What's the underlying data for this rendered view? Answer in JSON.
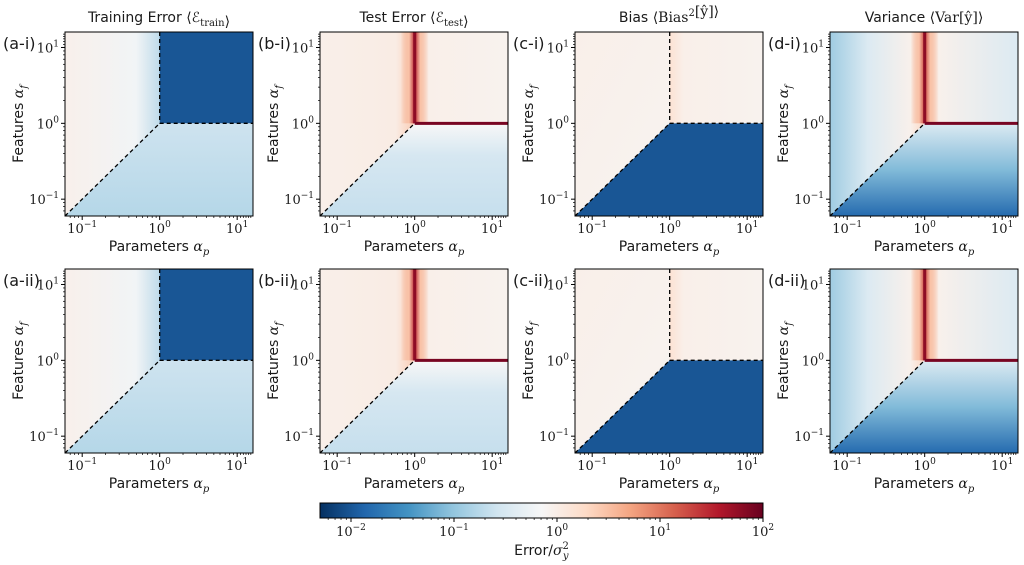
{
  "colors": {
    "dark_blue": "#053061",
    "white": "#f7f7f7",
    "dark_red": "#67001f",
    "frame": "#000000"
  },
  "chart_data": {
    "type": "heatmap",
    "layout": "2x4 grid of heatmaps with shared colorbar",
    "scale": "log",
    "xaxis": {
      "label_prefix": "Parameters ",
      "label_symbol": "α",
      "label_sub": "p",
      "ticks": [
        {
          "base": "10",
          "exp": "−1"
        },
        {
          "base": "10",
          "exp": "0"
        },
        {
          "base": "10",
          "exp": "1"
        }
      ],
      "range": [
        0.06,
        16
      ]
    },
    "yaxis": {
      "label_prefix": "Features ",
      "label_symbol": "α",
      "label_sub": "f",
      "ticks": [
        {
          "base": "10",
          "exp": "−1"
        },
        {
          "base": "10",
          "exp": "0"
        },
        {
          "base": "10",
          "exp": "1"
        }
      ],
      "range": [
        0.06,
        16
      ]
    },
    "columns": [
      {
        "key": "train",
        "title_text": "Training Error ",
        "title_math": "⟨ℰ",
        "title_sub": "train",
        "title_end": "⟩"
      },
      {
        "key": "test",
        "title_text": "Test Error ",
        "title_math": "⟨ℰ",
        "title_sub": "test",
        "title_end": "⟩"
      },
      {
        "key": "bias",
        "title_text": "Bias ",
        "title_math": "⟨Bias",
        "title_sup": "2",
        "title_mid": "[ŷ]",
        "title_end": "⟩"
      },
      {
        "key": "variance",
        "title_text": "Variance ",
        "title_math": "⟨Var",
        "title_mid": "[ŷ]",
        "title_end": "⟩"
      }
    ],
    "panels": [
      {
        "label": "(a-i)",
        "row": 0,
        "col": 0,
        "quantity": "train"
      },
      {
        "label": "(b-i)",
        "row": 0,
        "col": 1,
        "quantity": "test"
      },
      {
        "label": "(c-i)",
        "row": 0,
        "col": 2,
        "quantity": "bias"
      },
      {
        "label": "(d-i)",
        "row": 0,
        "col": 3,
        "quantity": "variance"
      },
      {
        "label": "(a-ii)",
        "row": 1,
        "col": 0,
        "quantity": "train"
      },
      {
        "label": "(b-ii)",
        "row": 1,
        "col": 1,
        "quantity": "test"
      },
      {
        "label": "(c-ii)",
        "row": 1,
        "col": 2,
        "quantity": "bias"
      },
      {
        "label": "(d-ii)",
        "row": 1,
        "col": 3,
        "quantity": "variance"
      }
    ],
    "boundaries": {
      "dashed_diagonal": "alpha_f = alpha_p for alpha_p < 1",
      "vertical_line": "alpha_p = 1 for alpha_f > 1",
      "horizontal_line": "alpha_f = 1 for alpha_p > 1"
    },
    "region_values": {
      "train": {
        "upper_left": 0.7,
        "upper_right": 0.01,
        "lower": 0.18
      },
      "test": {
        "upper_left": 0.9,
        "upper_right": 0.85,
        "lower": 0.2,
        "peak": 30
      },
      "bias": {
        "upper_left": 0.9,
        "upper_right": 0.85,
        "lower": 0.01
      },
      "variance": {
        "upper_left": 0.3,
        "upper_right": 0.6,
        "lower": 0.03,
        "peak": 20
      }
    },
    "colorbar": {
      "colormap": "RdBu_r",
      "range": [
        0.005,
        100
      ],
      "ticks": [
        {
          "base": "10",
          "exp": "−2"
        },
        {
          "base": "10",
          "exp": "−1"
        },
        {
          "base": "10",
          "exp": "0"
        },
        {
          "base": "10",
          "exp": "1"
        },
        {
          "base": "10",
          "exp": "2"
        }
      ],
      "label_prefix": "Error/",
      "label_symbol": "σ",
      "label_sub": "y",
      "label_sup": "2"
    }
  }
}
